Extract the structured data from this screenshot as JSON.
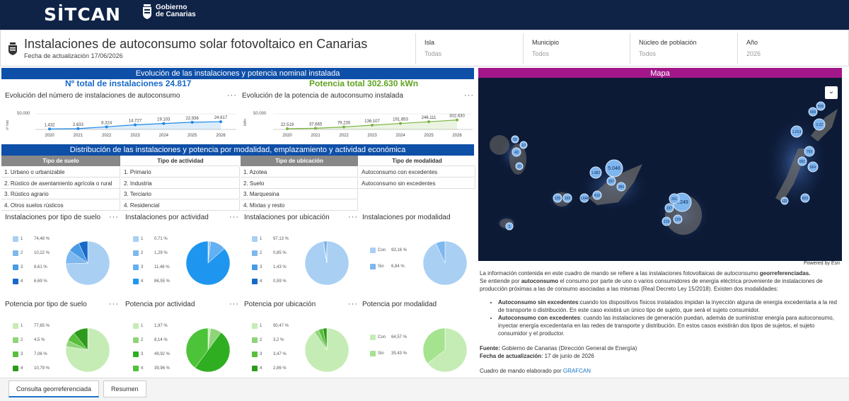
{
  "app": {
    "brand": "SİTCAN",
    "gov_line1": "Gobierno",
    "gov_line2": "de Canarias"
  },
  "header": {
    "title": "Instalaciones de autoconsumo solar fotovoltaico en Canarias",
    "updated": "Fecha de actualización 17/06/2026",
    "filters": [
      {
        "label": "Isla",
        "value": "Todas"
      },
      {
        "label": "Municipio",
        "value": "Todos"
      },
      {
        "label": "Núcleo de población",
        "value": "Todos"
      },
      {
        "label": "Año",
        "value": "2026"
      }
    ]
  },
  "evolution": {
    "banner": "Evolución de las instalaciones y potencia nominal instalada",
    "total_installs": "Nº total de instalaciones 24.817",
    "total_power": "Potencia total 302.630 kWn",
    "installs_title": "Evolución del número de instalaciones de autoconsumo",
    "power_title": "Evolución de la potencia de autoconsumo instalada",
    "installs_ylabel": "nº inst.",
    "power_ylabel": "kWn",
    "ytick": "50.000",
    "installs_labels": [
      "1.432",
      "2.633",
      "8.324",
      "14.727",
      "19.103",
      "22.936",
      "24.817"
    ],
    "power_labels": [
      "22.519",
      "37.665",
      "79.235",
      "136.107",
      "191.853",
      "246.111",
      "302.630"
    ]
  },
  "chart_data": [
    {
      "type": "line",
      "title": "Evolución del número de instalaciones de autoconsumo",
      "ylabel": "nº inst.",
      "x": [
        "2020",
        "2021",
        "2022",
        "2023",
        "2024",
        "2025",
        "2026"
      ],
      "values": [
        1432,
        2633,
        8324,
        14727,
        19103,
        22936,
        24817
      ],
      "ylim": [
        0,
        50000
      ],
      "color": "#1e88e5"
    },
    {
      "type": "line",
      "title": "Evolución de la potencia de autoconsumo instalada",
      "ylabel": "kWn",
      "x": [
        "2020",
        "2021",
        "2022",
        "2023",
        "2024",
        "2025",
        "2026"
      ],
      "values": [
        22519,
        37665,
        79235,
        136107,
        191853,
        246111,
        302630
      ],
      "ylim": [
        0,
        500000
      ],
      "color": "#7cb342"
    },
    {
      "type": "pie",
      "title": "Instalaciones por tipo de suelo",
      "categories": [
        "1",
        "2",
        "3",
        "4"
      ],
      "values": [
        74.48,
        10.22,
        8.61,
        6.69
      ]
    },
    {
      "type": "pie",
      "title": "Instalaciones por actividad",
      "categories": [
        "1",
        "2",
        "3",
        "4"
      ],
      "values": [
        0.71,
        1.29,
        11.46,
        86.55
      ]
    },
    {
      "type": "pie",
      "title": "Instalaciones por ubicación",
      "categories": [
        "1",
        "2",
        "3",
        "4"
      ],
      "values": [
        97.13,
        0.85,
        1.43,
        0.59
      ]
    },
    {
      "type": "pie",
      "title": "Instalaciones por modalidad",
      "categories": [
        "Con",
        "Sin"
      ],
      "values": [
        93.16,
        6.84
      ]
    },
    {
      "type": "pie",
      "title": "Potencia por tipo de suelo",
      "categories": [
        "1",
        "2",
        "3",
        "4"
      ],
      "values": [
        77.65,
        4.5,
        7.06,
        10.79
      ]
    },
    {
      "type": "pie",
      "title": "Potencia por actividad",
      "categories": [
        "1",
        "2",
        "3",
        "4"
      ],
      "values": [
        1.97,
        8.14,
        49.92,
        39.96
      ]
    },
    {
      "type": "pie",
      "title": "Potencia por ubicación",
      "categories": [
        "1",
        "2",
        "3",
        "4"
      ],
      "values": [
        90.47,
        3.2,
        3.47,
        2.86
      ]
    },
    {
      "type": "pie",
      "title": "Potencia por modalidad",
      "categories": [
        "Con",
        "Sin"
      ],
      "values": [
        64.57,
        35.43
      ]
    }
  ],
  "distribution": {
    "banner": "Distribución de las instalaciones y potencia por modalidad, emplazamiento y actividad económica",
    "columns": [
      {
        "head": "Tipo de suelo",
        "items": [
          "1. Urbano o urbanizable",
          "2. Rústico de asentamiento agrícola o rural",
          "3. Rústico agrario",
          "4. Otros suelos rústicos"
        ]
      },
      {
        "head": "Tipo de actividad",
        "items": [
          "1. Primario",
          "2. Industria",
          "3. Terciario",
          "4. Residencial"
        ]
      },
      {
        "head": "Tipo de ubicación",
        "items": [
          "1. Azotea",
          "2. Suelo",
          "3. Marquesina",
          "4. Mixtas y resto"
        ]
      },
      {
        "head": "Tipo de modalidad",
        "items": [
          "Autoconsumo con excedentes",
          "Autoconsumo sin excedentes"
        ]
      }
    ]
  },
  "pies": [
    {
      "title": "Instalaciones por tipo de suelo",
      "keys": [
        "1",
        "2",
        "3",
        "4"
      ],
      "labels": [
        "74,48 %",
        "10,22 %",
        "8,61 %",
        "6,69 %"
      ],
      "colors": [
        "#a9cff3",
        "#7db8ee",
        "#4a9be6",
        "#1769c9"
      ]
    },
    {
      "title": "Instalaciones por actividad",
      "keys": [
        "1",
        "2",
        "3",
        "4"
      ],
      "labels": [
        "0,71 %",
        "1,29 %",
        "11,46 %",
        "86,55 %"
      ],
      "colors": [
        "#a9cff3",
        "#7db8ee",
        "#63b0f2",
        "#1e96f0"
      ]
    },
    {
      "title": "Instalaciones por ubicación",
      "keys": [
        "1",
        "2",
        "3",
        "4"
      ],
      "labels": [
        "97,13 %",
        "0,85 %",
        "1,43 %",
        "0,59 %"
      ],
      "colors": [
        "#a9cff3",
        "#7db8ee",
        "#4a9be6",
        "#1769c9"
      ]
    },
    {
      "title": "Instalaciones por modalidad",
      "keys": [
        "Con",
        "Sin"
      ],
      "labels": [
        "93,16 %",
        "6,84 %"
      ],
      "colors": [
        "#a9cff3",
        "#7db8ee"
      ]
    },
    {
      "title": "Potencia por tipo de suelo",
      "keys": [
        "1",
        "2",
        "3",
        "4"
      ],
      "labels": [
        "77,65 %",
        "4,5 %",
        "7,06 %",
        "10,79 %"
      ],
      "colors": [
        "#c6ecb6",
        "#8fd478",
        "#58bf3c",
        "#2c9a1b"
      ]
    },
    {
      "title": "Potencia por actividad",
      "keys": [
        "1",
        "2",
        "3",
        "4"
      ],
      "labels": [
        "1,97 %",
        "8,14 %",
        "49,92 %",
        "39,96 %"
      ],
      "colors": [
        "#c6ecb6",
        "#8fd478",
        "#2fae22",
        "#4cc339"
      ]
    },
    {
      "title": "Potencia por ubicación",
      "keys": [
        "1",
        "2",
        "3",
        "4"
      ],
      "labels": [
        "90,47 %",
        "3,2 %",
        "3,47 %",
        "2,86 %"
      ],
      "colors": [
        "#c6ecb6",
        "#8fd478",
        "#58bf3c",
        "#2c9a1b"
      ]
    },
    {
      "title": "Potencia por modalidad",
      "keys": [
        "Con",
        "Sin"
      ],
      "labels": [
        "64,57 %",
        "35,43 %"
      ],
      "colors": [
        "#c6ecb6",
        "#a5e38f"
      ]
    }
  ],
  "map": {
    "banner": "Mapa",
    "attribution": "Powered by Esri",
    "clusters": [
      "5.048",
      "5.249",
      "1.882",
      "1.648",
      "1.013",
      "3.22",
      "823",
      "769",
      "664",
      "651",
      "569",
      "505",
      "410",
      "350",
      "337",
      "251",
      "237",
      "229",
      "219",
      "135",
      "103",
      "59",
      "43",
      "20",
      "10",
      "1",
      "122"
    ]
  },
  "info": {
    "p1a": "La información contenida en este cuadro de mando se refiere a las  instalaciones fotovoltaicas de autoconsumo ",
    "p1b": "georreferenciadas.",
    "p2a": "Se entiende por ",
    "p2b": "autoconsumo",
    "p2c": " el consumo por parte de uno o varios consumidores de energía eléctrica proveniente de instalaciones de producción próximas a las de consumo asociadas a las mismas (Real Decreto Ley 15/2018). Existen dos modalidades:",
    "b1a": "Autoconsumo sin excedentes",
    "b1b": ":cuando los dispositivos físicos instalados impidan la inyección alguna de energía excedentaria a la red de transporte o distribución. En este caso existirá un único tipo de sujeto, que será el sujeto consumidor.",
    "b2a": "Autoconsumo con excedentes",
    "b2b": ": cuando las instalaciones de generación puedan, además de suministrar energía para autoconsumo, inyectar energía excedentaria en las redes de transporte y distribución. En estos casos existirán dos tipos de sujetos, el sujeto consumidor y el productor.",
    "src_label": "Fuente:",
    "src_value": " Gobierno de Canarias (Dirección General de Energía)",
    "date_label": "Fecha de actualización",
    "date_value": ": 17 de junio de 2026",
    "credit": "Cuadro de mando elaborado por ",
    "credit_link": "GRAFCAN"
  },
  "tabs": [
    "Consulta georreferenciada",
    "Resumen"
  ]
}
